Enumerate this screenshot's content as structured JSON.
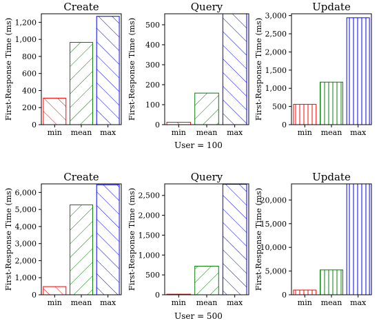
{
  "chart_data": [
    {
      "type": "bar",
      "group": "User = 100",
      "title": "Create",
      "ylabel": "First-Response Time (ms)",
      "categories": [
        "min",
        "mean",
        "max"
      ],
      "values": [
        310,
        965,
        1270
      ],
      "ylim": [
        0,
        1300
      ],
      "yticks": [
        0,
        200,
        400,
        600,
        800,
        1000,
        1200
      ],
      "ytick_labels": [
        "0",
        "200",
        "400",
        "600",
        "800",
        "1,000",
        "1,200"
      ]
    },
    {
      "type": "bar",
      "group": "User = 100",
      "title": "Query",
      "ylabel": "First-Response Time (ms)",
      "categories": [
        "min",
        "mean",
        "max"
      ],
      "values": [
        12,
        158,
        555
      ],
      "ylim": [
        0,
        555
      ],
      "yticks": [
        0,
        100,
        200,
        300,
        400,
        500
      ],
      "ytick_labels": [
        "0",
        "100",
        "200",
        "300",
        "400",
        "500"
      ]
    },
    {
      "type": "bar",
      "group": "User = 100",
      "title": "Update",
      "ylabel": "First-Response Time (ms)",
      "categories": [
        "min",
        "mean",
        "max"
      ],
      "values": [
        560,
        1170,
        2940
      ],
      "ylim": [
        0,
        3050
      ],
      "yticks": [
        0,
        500,
        1000,
        1500,
        2000,
        2500,
        3000
      ],
      "ytick_labels": [
        "0",
        "500",
        "1,000",
        "1,500",
        "2,000",
        "2,500",
        "3,000"
      ]
    },
    {
      "type": "bar",
      "group": "User = 500",
      "title": "Create",
      "ylabel": "First-Response Time (ms)",
      "categories": [
        "min",
        "mean",
        "max"
      ],
      "values": [
        480,
        5270,
        6450
      ],
      "ylim": [
        0,
        6500
      ],
      "yticks": [
        0,
        1000,
        2000,
        3000,
        4000,
        5000,
        6000
      ],
      "ytick_labels": [
        "0",
        "1,000",
        "2,000",
        "3,000",
        "4,000",
        "5,000",
        "6,000"
      ]
    },
    {
      "type": "bar",
      "group": "User = 500",
      "title": "Query",
      "ylabel": "First-Response Time (ms)",
      "categories": [
        "min",
        "mean",
        "max"
      ],
      "values": [
        15,
        720,
        2780
      ],
      "ylim": [
        0,
        2790
      ],
      "yticks": [
        0,
        500,
        1000,
        1500,
        2000,
        2500
      ],
      "ytick_labels": [
        "0",
        "500",
        "1,000",
        "1,500",
        "2,000",
        "2,500"
      ]
    },
    {
      "type": "bar",
      "group": "User = 500",
      "title": "Update",
      "ylabel": "First-Response Time (ms)",
      "categories": [
        "min",
        "mean",
        "max"
      ],
      "values": [
        1000,
        5250,
        23400
      ],
      "ylim": [
        0,
        23400
      ],
      "yticks": [
        0,
        5000,
        10000,
        15000,
        20000
      ],
      "ytick_labels": [
        "0",
        "5,000",
        "10,000",
        "15,000",
        "20,000"
      ]
    }
  ],
  "group_labels": [
    "User = 100",
    "User = 500"
  ],
  "colors": {
    "min": "#ff0000",
    "mean": "#008000",
    "max": "#0000ff"
  },
  "hatches": {
    "min": "diagonal-backslash",
    "mean": "diagonal-slash",
    "max": "diagonal-backslash",
    "update": "vertical"
  }
}
